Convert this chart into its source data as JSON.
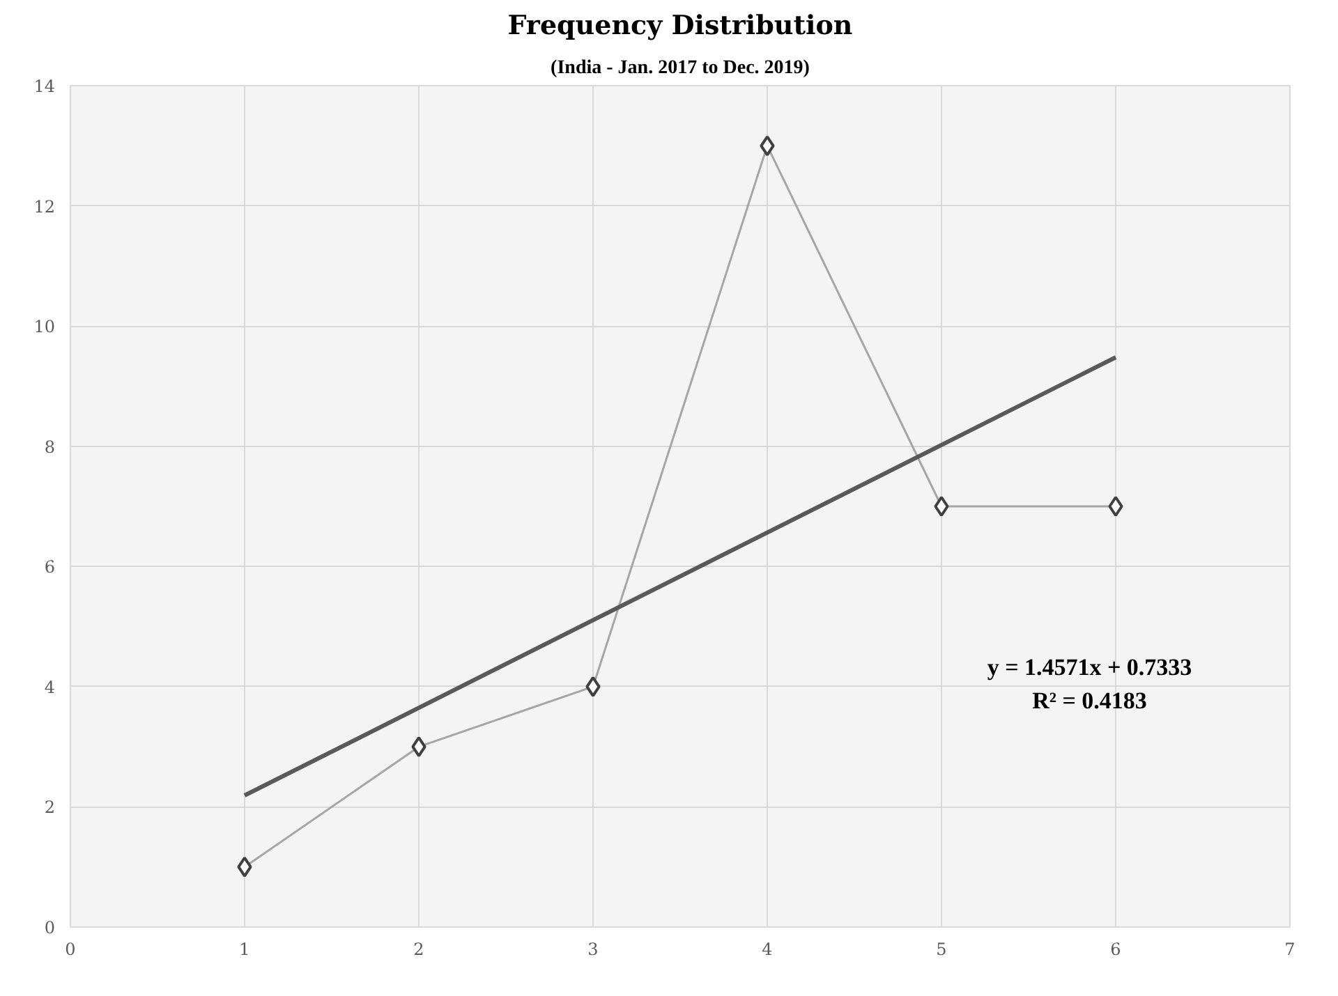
{
  "chart_data": {
    "type": "line",
    "title": "Frequency Distribution",
    "subtitle": "(India - Jan. 2017 to Dec. 2019)",
    "series": [
      {
        "color": "#a6a6a6",
        "marker": "diamond",
        "x": [
          1,
          2,
          3,
          4,
          5,
          6
        ],
        "values": [
          1,
          3,
          4,
          13,
          7,
          7
        ]
      },
      {
        "color": "#595959",
        "marker": "none",
        "x": [
          1,
          6
        ],
        "values": [
          2.19,
          9.48
        ]
      }
    ],
    "annotations": [
      "y = 1.4571x + 0.7333",
      "R² = 0.4183"
    ],
    "xlim": [
      0,
      7
    ],
    "xticks": [
      0,
      1,
      2,
      3,
      4,
      5,
      6,
      7
    ],
    "ylim": [
      0,
      14
    ],
    "yticks": [
      0,
      2,
      4,
      6,
      8,
      10,
      12,
      14
    ],
    "grid": true
  }
}
